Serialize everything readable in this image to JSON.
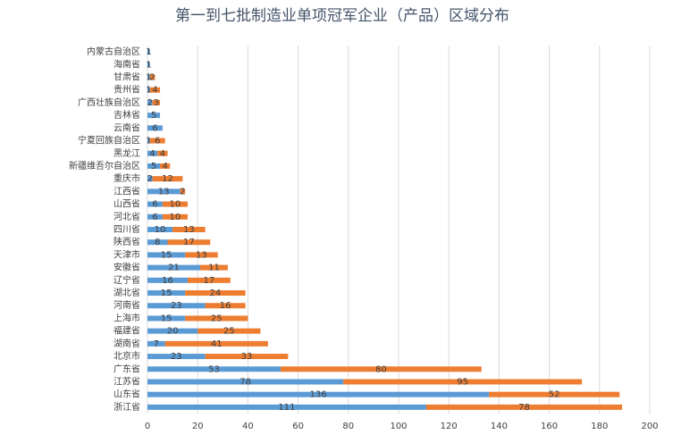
{
  "chart_data": {
    "type": "stacked-bar-horizontal",
    "title": "第一到七批制造业单项冠军企业（产品）区域分布",
    "categories": [
      "内蒙古自治区",
      "海南省",
      "甘肃省",
      "贵州省",
      "广西壮族自治区",
      "吉林省",
      "云南省",
      "宁夏回族自治区",
      "黑龙江",
      "新疆维吾尔自治区",
      "重庆市",
      "江西省",
      "山西省",
      "河北省",
      "四川省",
      "陕西省",
      "天津市",
      "安徽省",
      "辽宁省",
      "湖北省",
      "河南省",
      "上海市",
      "福建省",
      "湖南省",
      "北京市",
      "广东省",
      "江苏省",
      "山东省",
      "浙江省"
    ],
    "series": [
      {
        "color": "#5b9bd5",
        "values": [
          1,
          1,
          1,
          1,
          2,
          5,
          6,
          1,
          4,
          5,
          2,
          13,
          6,
          6,
          10,
          8,
          15,
          21,
          16,
          15,
          23,
          15,
          20,
          7,
          23,
          53,
          78,
          136,
          111
        ]
      },
      {
        "color": "#ed7d31",
        "values": [
          null,
          null,
          2,
          4,
          3,
          null,
          null,
          6,
          4,
          4,
          12,
          2,
          10,
          10,
          13,
          17,
          13,
          11,
          17,
          24,
          16,
          25,
          25,
          41,
          33,
          80,
          95,
          52,
          78
        ]
      }
    ],
    "xlim": [
      0,
      200
    ],
    "xticks": [
      0,
      20,
      40,
      60,
      80,
      100,
      120,
      140,
      160,
      180,
      200
    ],
    "grid": true
  }
}
